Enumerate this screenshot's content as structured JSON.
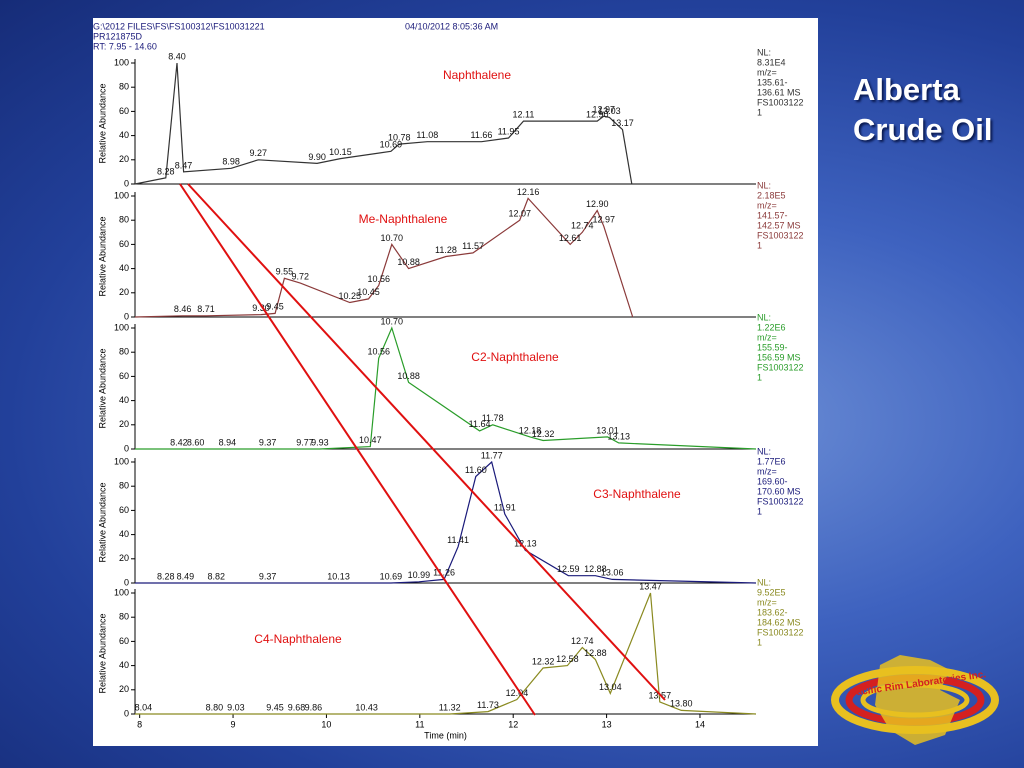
{
  "slide": {
    "title": "Alberta Crude Oil",
    "logo": "Pacific Rim Laboratories Inc."
  },
  "header": {
    "file": "G:\\2012 FILES\\FS\\FS100312\\FS10031221",
    "date": "04/10/2012 8:05:36 AM",
    "sample": "PR121875D",
    "range": "RT: 7.95 - 14.60"
  },
  "chart_data": [
    {
      "type": "line",
      "title": "Naphthalene",
      "color": "#333333",
      "ylabel": "Relative Abundance",
      "info": [
        "NL:",
        "8.31E4",
        "m/z=",
        "135.61-",
        "136.61  MS",
        "FS1003122",
        "1"
      ],
      "xlim": [
        7.95,
        14.6
      ],
      "ylim": [
        0,
        100
      ],
      "yticks": [
        0,
        20,
        40,
        60,
        80,
        100
      ],
      "x": [
        7.95,
        8.28,
        8.4,
        8.47,
        8.98,
        9.27,
        9.9,
        10.15,
        10.69,
        10.78,
        11.08,
        11.66,
        11.95,
        12.11,
        12.9,
        12.97,
        13.03,
        13.17,
        13.27
      ],
      "values": [
        0,
        5,
        100,
        10,
        13,
        20,
        17,
        21,
        27,
        33,
        35,
        35,
        38,
        52,
        52,
        56,
        55,
        45,
        0
      ],
      "peak_labels": [
        null,
        "8.28",
        "8.40",
        "8.47",
        "8.98",
        "9.27",
        "9.90",
        "10.15",
        "10.69",
        "10.78",
        "11.08",
        "11.66",
        "11.95",
        "12.11",
        "12.90",
        "12.97",
        "13.03",
        "13.17",
        null
      ]
    },
    {
      "type": "line",
      "title": "Me-Naphthalene",
      "color": "#8b3a3a",
      "ylabel": "Relative Abundance",
      "info": [
        "NL:",
        "2.18E5",
        "m/z=",
        "141.57-",
        "142.57  MS",
        "FS1003122",
        "1"
      ],
      "xlim": [
        7.95,
        14.6
      ],
      "ylim": [
        0,
        100
      ],
      "yticks": [
        0,
        20,
        40,
        60,
        80,
        100
      ],
      "x": [
        7.95,
        8.46,
        8.71,
        9.3,
        9.45,
        9.55,
        9.72,
        10.25,
        10.45,
        10.56,
        10.7,
        10.88,
        11.28,
        11.57,
        12.07,
        12.16,
        12.61,
        12.74,
        12.9,
        12.97,
        13.28
      ],
      "values": [
        0,
        1,
        1,
        2,
        3,
        32,
        28,
        12,
        15,
        26,
        60,
        40,
        50,
        53,
        80,
        98,
        60,
        70,
        88,
        75,
        0
      ],
      "peak_labels": [
        null,
        "8.46",
        "8.71",
        "9.30",
        "9.45",
        "9.55",
        "9.72",
        "10.25",
        "10.45",
        "10.56",
        "10.70",
        "10.88",
        "11.28",
        "11.57",
        "12.07",
        "12.16",
        "12.61",
        "12.74",
        "12.90",
        "12.97",
        null
      ]
    },
    {
      "type": "line",
      "title": "C2-Naphthalene",
      "color": "#2a9d2a",
      "ylabel": "Relative Abundance",
      "info": [
        "NL:",
        "1.22E6",
        "m/z=",
        "155.59-",
        "156.59  MS",
        "FS1003122",
        "1"
      ],
      "xlim": [
        7.95,
        14.6
      ],
      "ylim": [
        0,
        100
      ],
      "yticks": [
        0,
        20,
        40,
        60,
        80,
        100
      ],
      "x": [
        7.95,
        8.42,
        8.6,
        8.94,
        9.37,
        9.77,
        9.93,
        10.47,
        10.56,
        10.7,
        10.88,
        11.64,
        11.78,
        12.18,
        12.32,
        13.01,
        13.13,
        14.6
      ],
      "values": [
        0,
        0,
        0,
        0,
        0,
        0,
        0,
        2,
        75,
        100,
        55,
        15,
        20,
        10,
        7,
        10,
        5,
        0
      ],
      "peak_labels": [
        null,
        "8.42",
        "8.60",
        "8.94",
        "9.37",
        "9.77",
        "9.93",
        "10.47",
        "10.56",
        "10.70",
        "10.88",
        "11.64",
        "11.78",
        "12.18",
        "12.32",
        "13.01",
        "13.13",
        null
      ]
    },
    {
      "type": "line",
      "title": "C3-Naphthalene",
      "color": "#1a1a7a",
      "ylabel": "Relative Abundance",
      "info": [
        "NL:",
        "1.77E6",
        "m/z=",
        "169.60-",
        "170.60  MS",
        "FS1003122",
        "1"
      ],
      "xlim": [
        7.95,
        14.6
      ],
      "ylim": [
        0,
        100
      ],
      "yticks": [
        0,
        20,
        40,
        60,
        80,
        100
      ],
      "x": [
        7.95,
        8.28,
        8.49,
        8.82,
        9.37,
        10.13,
        10.69,
        10.99,
        11.26,
        11.41,
        11.6,
        11.77,
        11.91,
        12.13,
        12.59,
        12.88,
        13.06,
        14.6
      ],
      "values": [
        0,
        0,
        0,
        0,
        0,
        0,
        0,
        1,
        3,
        30,
        88,
        100,
        57,
        27,
        6,
        6,
        3,
        0
      ],
      "peak_labels": [
        null,
        "8.28",
        "8.49",
        "8.82",
        "9.37",
        "10.13",
        "10.69",
        "10.99",
        "11.26",
        "11.41",
        "11.60",
        "11.77",
        "11.91",
        "12.13",
        "12.59",
        "12.88",
        "13.06",
        null
      ]
    },
    {
      "type": "line",
      "title": "C4-Naphthalene",
      "color": "#8a8a20",
      "ylabel": "Relative Abundance",
      "xlabel": "Time (min)",
      "info": [
        "NL:",
        "9.52E5",
        "m/z=",
        "183.62-",
        "184.62  MS",
        "FS1003122",
        "1"
      ],
      "xlim": [
        7.95,
        14.6
      ],
      "xticks": [
        8,
        9,
        10,
        11,
        12,
        13,
        14
      ],
      "ylim": [
        0,
        100
      ],
      "yticks": [
        0,
        20,
        40,
        60,
        80,
        100
      ],
      "x": [
        7.95,
        8.04,
        8.8,
        9.03,
        9.45,
        9.68,
        9.86,
        10.43,
        11.32,
        11.73,
        12.04,
        12.32,
        12.58,
        12.74,
        12.88,
        13.04,
        13.47,
        13.57,
        13.8,
        14.6
      ],
      "values": [
        0,
        0,
        0,
        0,
        0,
        0,
        0,
        0,
        0,
        2,
        12,
        38,
        40,
        55,
        45,
        17,
        100,
        10,
        3,
        0
      ],
      "peak_labels": [
        null,
        "8.04",
        "8.80",
        "9.03",
        "9.45",
        "9.68",
        "9.86",
        "10.43",
        "11.32",
        "11.73",
        "12.04",
        "12.32",
        "12.58",
        "12.74",
        "12.88",
        "13.04",
        "13.47",
        "13.57",
        "13.80",
        null
      ]
    }
  ]
}
